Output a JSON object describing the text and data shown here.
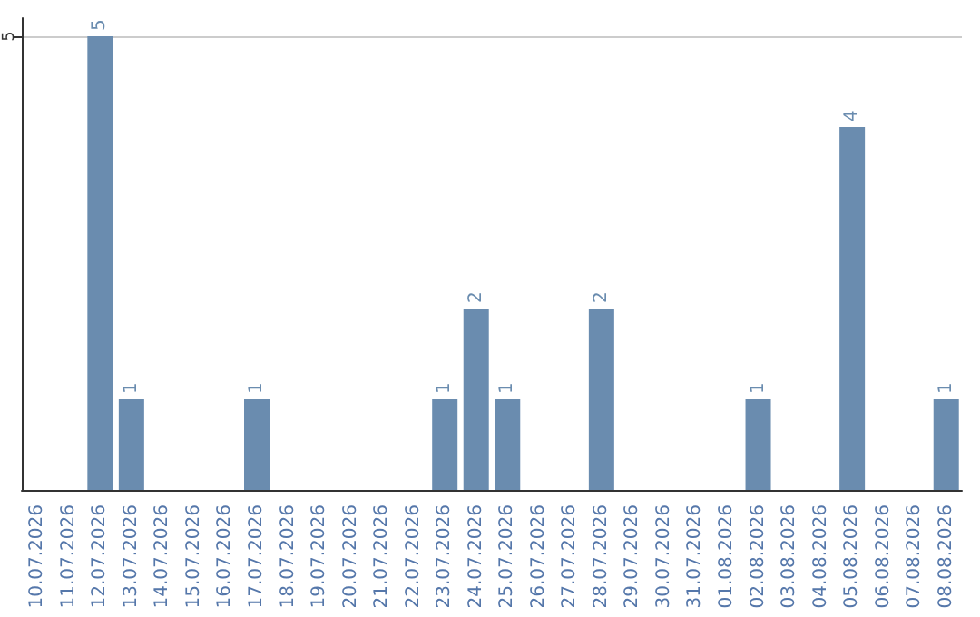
{
  "chart_data": {
    "type": "bar",
    "categories": [
      "10.07.2026",
      "11.07.2026",
      "12.07.2026",
      "13.07.2026",
      "14.07.2026",
      "15.07.2026",
      "16.07.2026",
      "17.07.2026",
      "18.07.2026",
      "19.07.2026",
      "20.07.2026",
      "21.07.2026",
      "22.07.2026",
      "23.07.2026",
      "24.07.2026",
      "25.07.2026",
      "26.07.2026",
      "27.07.2026",
      "28.07.2026",
      "29.07.2026",
      "30.07.2026",
      "31.07.2026",
      "01.08.2026",
      "02.08.2026",
      "03.08.2026",
      "04.08.2026",
      "05.08.2026",
      "06.08.2026",
      "07.08.2026",
      "08.08.2026"
    ],
    "values": [
      0,
      0,
      5,
      1,
      0,
      0,
      0,
      1,
      0,
      0,
      0,
      0,
      0,
      1,
      2,
      1,
      0,
      0,
      2,
      0,
      0,
      0,
      0,
      1,
      0,
      0,
      4,
      0,
      0,
      1
    ],
    "value_labels": [
      null,
      null,
      "5",
      "1",
      null,
      null,
      null,
      "1",
      null,
      null,
      null,
      null,
      null,
      "1",
      "2",
      "1",
      null,
      null,
      "2",
      null,
      null,
      null,
      null,
      "1",
      null,
      null,
      "4",
      null,
      null,
      "1"
    ],
    "color": "#6a8caf",
    "ylim": [
      0,
      5.2
    ],
    "yticks": [
      5
    ],
    "grid": "y"
  }
}
